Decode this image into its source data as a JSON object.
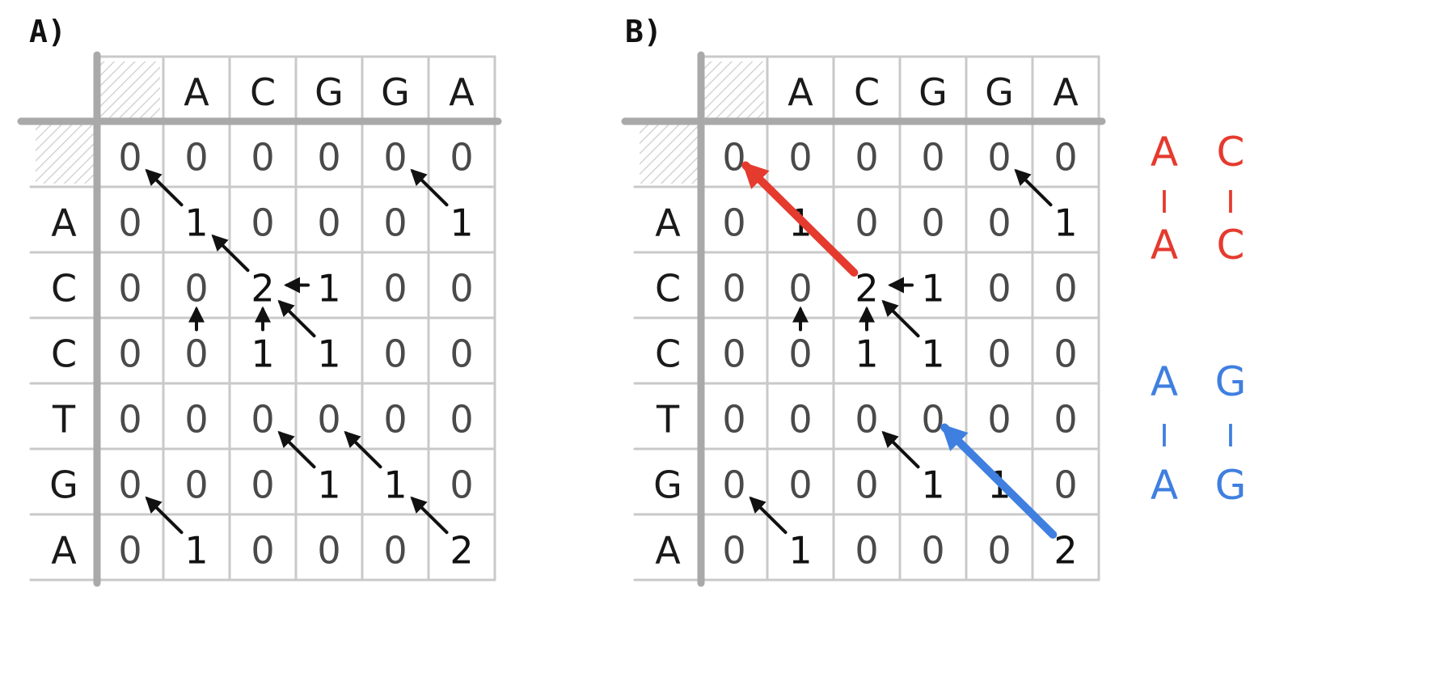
{
  "panels": [
    {
      "label": "A)",
      "columns": [
        "A",
        "C",
        "G",
        "G",
        "A"
      ],
      "rows": [
        "A",
        "C",
        "C",
        "T",
        "G",
        "A"
      ],
      "grid": [
        [
          "0",
          "0",
          "0",
          "0",
          "0",
          "0"
        ],
        [
          "0",
          "1",
          "0",
          "0",
          "0",
          "1"
        ],
        [
          "0",
          "0",
          "2",
          "1",
          "0",
          "0"
        ],
        [
          "0",
          "0",
          "1",
          "1",
          "0",
          "0"
        ],
        [
          "0",
          "0",
          "0",
          "0",
          "0",
          "0"
        ],
        [
          "0",
          "0",
          "0",
          "1",
          "1",
          "0"
        ],
        [
          "0",
          "1",
          "0",
          "0",
          "0",
          "2"
        ]
      ],
      "arrows": [
        {
          "from": [
            1,
            1
          ],
          "to": [
            0,
            0
          ],
          "style": "black"
        },
        {
          "from": [
            1,
            5
          ],
          "to": [
            0,
            4
          ],
          "style": "black"
        },
        {
          "from": [
            2,
            2
          ],
          "to": [
            1,
            1
          ],
          "style": "black"
        },
        {
          "from": [
            2,
            3
          ],
          "to": [
            2,
            2
          ],
          "style": "black"
        },
        {
          "from": [
            3,
            1
          ],
          "to": [
            2,
            1
          ],
          "style": "black"
        },
        {
          "from": [
            3,
            2
          ],
          "to": [
            2,
            2
          ],
          "style": "black"
        },
        {
          "from": [
            3,
            3
          ],
          "to": [
            2,
            2
          ],
          "style": "black"
        },
        {
          "from": [
            5,
            3
          ],
          "to": [
            4,
            2
          ],
          "style": "black"
        },
        {
          "from": [
            5,
            4
          ],
          "to": [
            4,
            3
          ],
          "style": "black"
        },
        {
          "from": [
            6,
            1
          ],
          "to": [
            5,
            0
          ],
          "style": "black"
        },
        {
          "from": [
            6,
            5
          ],
          "to": [
            5,
            4
          ],
          "style": "black"
        }
      ]
    },
    {
      "label": "B)",
      "columns": [
        "A",
        "C",
        "G",
        "G",
        "A"
      ],
      "rows": [
        "A",
        "C",
        "C",
        "T",
        "G",
        "A"
      ],
      "grid": [
        [
          "0",
          "0",
          "0",
          "0",
          "0",
          "0"
        ],
        [
          "0",
          "1",
          "0",
          "0",
          "0",
          "1"
        ],
        [
          "0",
          "0",
          "2",
          "1",
          "0",
          "0"
        ],
        [
          "0",
          "0",
          "1",
          "1",
          "0",
          "0"
        ],
        [
          "0",
          "0",
          "0",
          "0",
          "0",
          "0"
        ],
        [
          "0",
          "0",
          "0",
          "1",
          "1",
          "0"
        ],
        [
          "0",
          "1",
          "0",
          "0",
          "0",
          "2"
        ]
      ],
      "arrows": [
        {
          "from": [
            2,
            2
          ],
          "to": [
            0,
            0
          ],
          "style": "red"
        },
        {
          "from": [
            6,
            5
          ],
          "to": [
            4,
            3
          ],
          "style": "blue"
        },
        {
          "from": [
            1,
            5
          ],
          "to": [
            0,
            4
          ],
          "style": "black"
        },
        {
          "from": [
            2,
            3
          ],
          "to": [
            2,
            2
          ],
          "style": "black"
        },
        {
          "from": [
            3,
            1
          ],
          "to": [
            2,
            1
          ],
          "style": "black"
        },
        {
          "from": [
            3,
            2
          ],
          "to": [
            2,
            2
          ],
          "style": "black"
        },
        {
          "from": [
            3,
            3
          ],
          "to": [
            2,
            2
          ],
          "style": "black"
        },
        {
          "from": [
            5,
            3
          ],
          "to": [
            4,
            2
          ],
          "style": "black"
        },
        {
          "from": [
            6,
            1
          ],
          "to": [
            5,
            0
          ],
          "style": "black"
        }
      ]
    }
  ],
  "alignments": [
    {
      "color": "red",
      "top": [
        "A",
        "C"
      ],
      "bar": [
        "I",
        "I"
      ],
      "bottom": [
        "A",
        "C"
      ]
    },
    {
      "color": "blue",
      "top": [
        "A",
        "G"
      ],
      "bar": [
        "I",
        "I"
      ],
      "bottom": [
        "A",
        "G"
      ]
    }
  ],
  "colors": {
    "red": "#e53a2e",
    "blue": "#3f7fe0",
    "black": "#111111",
    "grid_minor": "#c9c9c9",
    "grid_major": "#a9a9a9",
    "hatch": "#d4d4d4"
  }
}
